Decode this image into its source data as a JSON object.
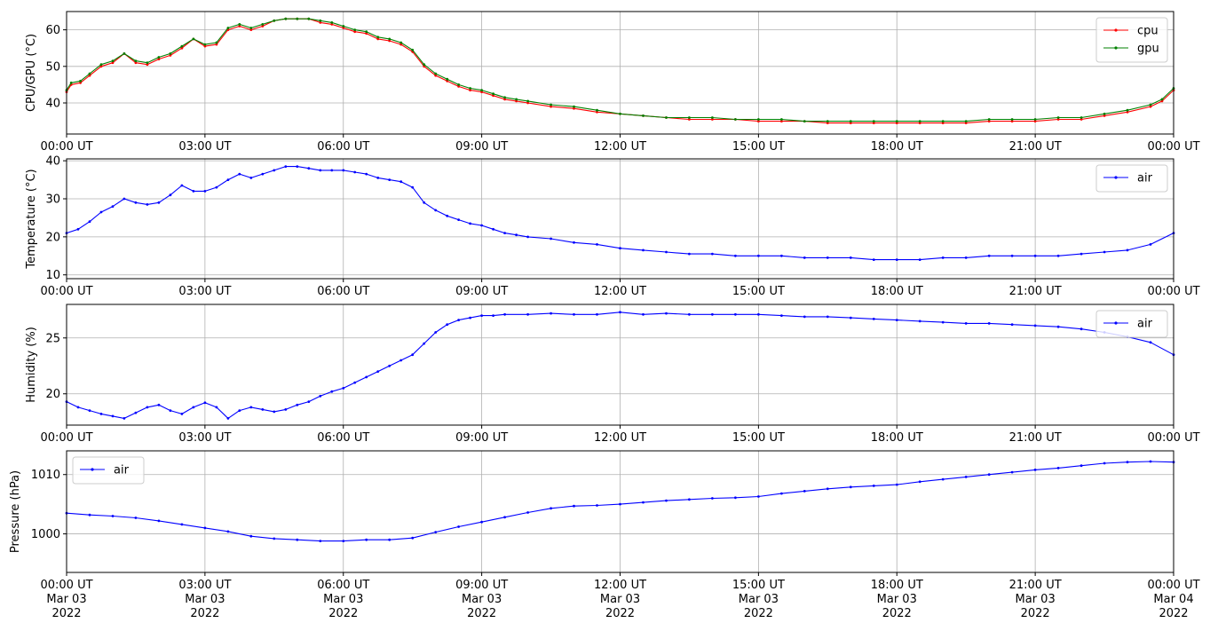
{
  "colors": {
    "cpu": "#ff0000",
    "gpu": "#008000",
    "air": "#0000ff",
    "grid": "#b0b0b0"
  },
  "chart_data": [
    {
      "type": "line",
      "ylabel": "CPU/GPU (°C)",
      "x_unit": "hours since 00:00 UT",
      "xlim": [
        0,
        24
      ],
      "ylim": [
        31.5,
        65
      ],
      "yticks": [
        40,
        50,
        60
      ],
      "xtick_labels": [
        "00:00 UT",
        "03:00 UT",
        "06:00 UT",
        "09:00 UT",
        "12:00 UT",
        "15:00 UT",
        "18:00 UT",
        "21:00 UT",
        "00:00 UT"
      ],
      "legend": "top-right",
      "grid": true,
      "series": [
        {
          "name": "cpu",
          "color": "#ff0000",
          "x": [
            0,
            0.1,
            0.3,
            0.5,
            0.75,
            1.0,
            1.25,
            1.5,
            1.75,
            2.0,
            2.25,
            2.5,
            2.75,
            3.0,
            3.25,
            3.5,
            3.75,
            4.0,
            4.25,
            4.5,
            4.75,
            5.0,
            5.25,
            5.5,
            5.75,
            6.0,
            6.25,
            6.5,
            6.75,
            7.0,
            7.25,
            7.5,
            7.75,
            8.0,
            8.25,
            8.5,
            8.75,
            9.0,
            9.25,
            9.5,
            9.75,
            10.0,
            10.5,
            11.0,
            11.5,
            12.0,
            12.5,
            13.0,
            13.5,
            14.0,
            14.5,
            15.0,
            15.5,
            16.0,
            16.5,
            17.0,
            17.5,
            18.0,
            18.5,
            19.0,
            19.5,
            20.0,
            20.5,
            21.0,
            21.5,
            22.0,
            22.5,
            23.0,
            23.5,
            23.75,
            24.0
          ],
          "y": [
            43,
            45,
            45.5,
            47.5,
            50,
            51,
            53.5,
            51,
            50.5,
            52,
            53,
            55,
            57.5,
            55.5,
            56,
            60,
            61,
            60,
            61,
            62.5,
            63,
            63,
            63,
            62,
            61.5,
            60.5,
            59.5,
            59,
            57.5,
            57,
            56,
            54,
            50,
            47.5,
            46,
            44.5,
            43.5,
            43,
            42,
            41,
            40.5,
            40,
            39,
            38.5,
            37.5,
            37,
            36.5,
            36,
            35.5,
            35.5,
            35.5,
            35,
            35,
            35,
            34.5,
            34.5,
            34.5,
            34.5,
            34.5,
            34.5,
            34.5,
            35,
            35,
            35,
            35.5,
            35.5,
            36.5,
            37.5,
            39,
            40.5,
            43.5
          ]
        },
        {
          "name": "gpu",
          "color": "#008000",
          "x": [
            0,
            0.1,
            0.3,
            0.5,
            0.75,
            1.0,
            1.25,
            1.5,
            1.75,
            2.0,
            2.25,
            2.5,
            2.75,
            3.0,
            3.25,
            3.5,
            3.75,
            4.0,
            4.25,
            4.5,
            4.75,
            5.0,
            5.25,
            5.5,
            5.75,
            6.0,
            6.25,
            6.5,
            6.75,
            7.0,
            7.25,
            7.5,
            7.75,
            8.0,
            8.25,
            8.5,
            8.75,
            9.0,
            9.25,
            9.5,
            9.75,
            10.0,
            10.5,
            11.0,
            11.5,
            12.0,
            12.5,
            13.0,
            13.5,
            14.0,
            14.5,
            15.0,
            15.5,
            16.0,
            16.5,
            17.0,
            17.5,
            18.0,
            18.5,
            19.0,
            19.5,
            20.0,
            20.5,
            21.0,
            21.5,
            22.0,
            22.5,
            23.0,
            23.5,
            23.75,
            24.0
          ],
          "y": [
            43.5,
            45.5,
            46,
            48,
            50.5,
            51.5,
            53.5,
            51.5,
            51,
            52.5,
            53.5,
            55.5,
            57.5,
            56,
            56.5,
            60.5,
            61.5,
            60.5,
            61.5,
            62.5,
            63,
            63,
            63,
            62.5,
            62,
            61,
            60,
            59.5,
            58,
            57.5,
            56.5,
            54.5,
            50.5,
            48,
            46.5,
            45,
            44,
            43.5,
            42.5,
            41.5,
            41,
            40.5,
            39.5,
            39,
            38,
            37,
            36.5,
            36,
            36,
            36,
            35.5,
            35.5,
            35.5,
            35,
            35,
            35,
            35,
            35,
            35,
            35,
            35,
            35.5,
            35.5,
            35.5,
            36,
            36,
            37,
            38,
            39.5,
            41,
            44
          ]
        }
      ]
    },
    {
      "type": "line",
      "ylabel": "Temperature (°C)",
      "x_unit": "hours since 00:00 UT",
      "xlim": [
        0,
        24
      ],
      "ylim": [
        9,
        40.5
      ],
      "yticks": [
        10,
        20,
        30,
        40
      ],
      "xtick_labels": [
        "00:00 UT",
        "03:00 UT",
        "06:00 UT",
        "09:00 UT",
        "12:00 UT",
        "15:00 UT",
        "18:00 UT",
        "21:00 UT",
        "00:00 UT"
      ],
      "legend": "top-right",
      "grid": true,
      "series": [
        {
          "name": "air",
          "color": "#0000ff",
          "x": [
            0,
            0.25,
            0.5,
            0.75,
            1.0,
            1.25,
            1.5,
            1.75,
            2.0,
            2.25,
            2.5,
            2.75,
            3.0,
            3.25,
            3.5,
            3.75,
            4.0,
            4.25,
            4.5,
            4.75,
            5.0,
            5.25,
            5.5,
            5.75,
            6.0,
            6.25,
            6.5,
            6.75,
            7.0,
            7.25,
            7.5,
            7.75,
            8.0,
            8.25,
            8.5,
            8.75,
            9.0,
            9.25,
            9.5,
            9.75,
            10.0,
            10.5,
            11.0,
            11.5,
            12.0,
            12.5,
            13.0,
            13.5,
            14.0,
            14.5,
            15.0,
            15.5,
            16.0,
            16.5,
            17.0,
            17.5,
            18.0,
            18.5,
            19.0,
            19.5,
            20.0,
            20.5,
            21.0,
            21.5,
            22.0,
            22.5,
            23.0,
            23.5,
            24.0
          ],
          "y": [
            21,
            22,
            24,
            26.5,
            28,
            30,
            29,
            28.5,
            29,
            31,
            33.5,
            32,
            32,
            33,
            35,
            36.5,
            35.5,
            36.5,
            37.5,
            38.5,
            38.5,
            38,
            37.5,
            37.5,
            37.5,
            37,
            36.5,
            35.5,
            35,
            34.5,
            33,
            29,
            27,
            25.5,
            24.5,
            23.5,
            23,
            22,
            21,
            20.5,
            20,
            19.5,
            18.5,
            18,
            17,
            16.5,
            16,
            15.5,
            15.5,
            15,
            15,
            15,
            14.5,
            14.5,
            14.5,
            14,
            14,
            14,
            14.5,
            14.5,
            15,
            15,
            15,
            15,
            15.5,
            16,
            16.5,
            18,
            21
          ]
        }
      ]
    },
    {
      "type": "line",
      "ylabel": "Humidity (%)",
      "x_unit": "hours since 00:00 UT",
      "xlim": [
        0,
        24
      ],
      "ylim": [
        17.2,
        28
      ],
      "yticks": [
        20,
        25
      ],
      "xtick_labels": [
        "00:00 UT",
        "03:00 UT",
        "06:00 UT",
        "09:00 UT",
        "12:00 UT",
        "15:00 UT",
        "18:00 UT",
        "21:00 UT",
        "00:00 UT"
      ],
      "legend": "top-right",
      "grid": true,
      "series": [
        {
          "name": "air",
          "color": "#0000ff",
          "x": [
            0,
            0.25,
            0.5,
            0.75,
            1.0,
            1.25,
            1.5,
            1.75,
            2.0,
            2.25,
            2.5,
            2.75,
            3.0,
            3.25,
            3.5,
            3.75,
            4.0,
            4.25,
            4.5,
            4.75,
            5.0,
            5.25,
            5.5,
            5.75,
            6.0,
            6.25,
            6.5,
            6.75,
            7.0,
            7.25,
            7.5,
            7.75,
            8.0,
            8.25,
            8.5,
            8.75,
            9.0,
            9.25,
            9.5,
            10.0,
            10.5,
            11.0,
            11.5,
            12.0,
            12.5,
            13.0,
            13.5,
            14.0,
            14.5,
            15.0,
            15.5,
            16.0,
            16.5,
            17.0,
            17.5,
            18.0,
            18.5,
            19.0,
            19.5,
            20.0,
            20.5,
            21.0,
            21.5,
            22.0,
            22.5,
            23.0,
            23.5,
            24.0
          ],
          "y": [
            19.3,
            18.8,
            18.5,
            18.2,
            18,
            17.8,
            18.3,
            18.8,
            19,
            18.5,
            18.2,
            18.8,
            19.2,
            18.8,
            17.8,
            18.5,
            18.8,
            18.6,
            18.4,
            18.6,
            19,
            19.3,
            19.8,
            20.2,
            20.5,
            21,
            21.5,
            22,
            22.5,
            23,
            23.5,
            24.5,
            25.5,
            26.2,
            26.6,
            26.8,
            27,
            27,
            27.1,
            27.1,
            27.2,
            27.1,
            27.1,
            27.3,
            27.1,
            27.2,
            27.1,
            27.1,
            27.1,
            27.1,
            27,
            26.9,
            26.9,
            26.8,
            26.7,
            26.6,
            26.5,
            26.4,
            26.3,
            26.3,
            26.2,
            26.1,
            26,
            25.8,
            25.5,
            25.1,
            24.6,
            23.5
          ]
        }
      ]
    },
    {
      "type": "line",
      "ylabel": "Pressure (hPa)",
      "x_unit": "hours since 00:00 UT",
      "xlim": [
        0,
        24
      ],
      "ylim": [
        993.5,
        1014
      ],
      "yticks": [
        1000,
        1010
      ],
      "xtick_labels": [
        "00:00 UT\nMar 03\n2022",
        "03:00 UT\nMar 03\n2022",
        "06:00 UT\nMar 03\n2022",
        "09:00 UT\nMar 03\n2022",
        "12:00 UT\nMar 03\n2022",
        "15:00 UT\nMar 03\n2022",
        "18:00 UT\nMar 03\n2022",
        "21:00 UT\nMar 03\n2022",
        "00:00 UT\nMar 04\n2022"
      ],
      "legend": "top-left",
      "grid": true,
      "series": [
        {
          "name": "air",
          "color": "#0000ff",
          "x": [
            0,
            0.5,
            1.0,
            1.5,
            2.0,
            2.5,
            3.0,
            3.5,
            4.0,
            4.5,
            5.0,
            5.5,
            6.0,
            6.5,
            7.0,
            7.5,
            8.0,
            8.5,
            9.0,
            9.5,
            10.0,
            10.5,
            11.0,
            11.5,
            12.0,
            12.5,
            13.0,
            13.5,
            14.0,
            14.5,
            15.0,
            15.5,
            16.0,
            16.5,
            17.0,
            17.5,
            18.0,
            18.5,
            19.0,
            19.5,
            20.0,
            20.5,
            21.0,
            21.5,
            22.0,
            22.5,
            23.0,
            23.5,
            24.0
          ],
          "y": [
            1003.5,
            1003.2,
            1003,
            1002.7,
            1002.2,
            1001.6,
            1001,
            1000.4,
            999.6,
            999.2,
            999,
            998.8,
            998.8,
            999,
            999,
            999.3,
            1000.3,
            1001.2,
            1002,
            1002.8,
            1003.6,
            1004.3,
            1004.7,
            1004.8,
            1005,
            1005.3,
            1005.6,
            1005.8,
            1006,
            1006.1,
            1006.3,
            1006.8,
            1007.2,
            1007.6,
            1007.9,
            1008.1,
            1008.3,
            1008.8,
            1009.2,
            1009.6,
            1010,
            1010.4,
            1010.8,
            1011.1,
            1011.5,
            1011.9,
            1012.1,
            1012.2,
            1012.1
          ]
        }
      ]
    }
  ]
}
